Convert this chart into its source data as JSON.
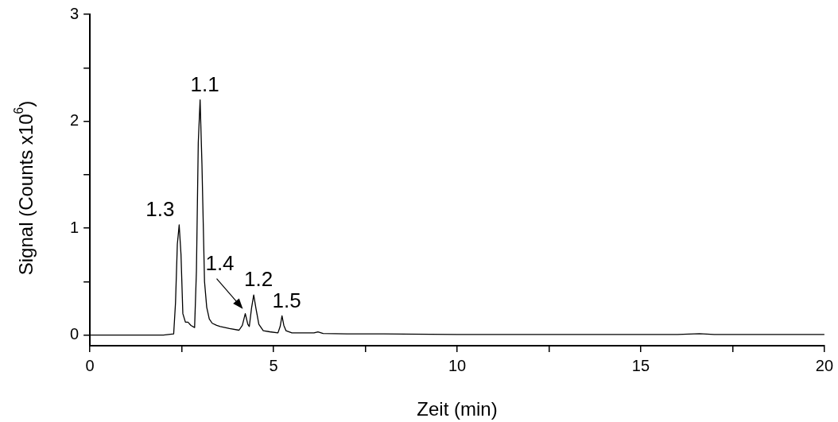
{
  "chart_data": {
    "type": "line",
    "xlabel": "Zeit (min)",
    "ylabel": "Signal (Counts x10$^{6}$)",
    "series": [
      {
        "color": "#000000",
        "x": [
          0,
          1,
          2,
          2.28,
          2.33,
          2.38,
          2.43,
          2.48,
          2.53,
          2.6,
          2.67,
          2.75,
          2.85,
          2.9,
          2.95,
          3.0,
          3.05,
          3.12,
          3.18,
          3.25,
          3.33,
          3.45,
          3.55,
          3.8,
          4.06,
          4.15,
          4.23,
          4.3,
          4.34,
          4.4,
          4.46,
          4.52,
          4.6,
          4.72,
          4.9,
          5.12,
          5.18,
          5.23,
          5.28,
          5.34,
          5.5,
          5.8,
          6.1,
          6.21,
          6.35,
          7,
          8,
          10,
          12,
          14,
          16,
          16.6,
          17,
          18,
          20
        ],
        "values": [
          0,
          0,
          0,
          0.01,
          0.3,
          0.85,
          1.03,
          0.75,
          0.2,
          0.12,
          0.12,
          0.09,
          0.07,
          0.6,
          1.8,
          2.2,
          1.6,
          0.5,
          0.26,
          0.15,
          0.11,
          0.09,
          0.08,
          0.06,
          0.045,
          0.09,
          0.2,
          0.1,
          0.08,
          0.25,
          0.375,
          0.25,
          0.1,
          0.04,
          0.03,
          0.02,
          0.08,
          0.18,
          0.09,
          0.04,
          0.02,
          0.02,
          0.02,
          0.03,
          0.015,
          0.01,
          0.01,
          0.005,
          0.005,
          0.005,
          0.005,
          0.012,
          0.005,
          0.005,
          0.005
        ]
      }
    ],
    "xlim": [
      0,
      20
    ],
    "xticks": [
      0,
      {
        "value": 2.5,
        "label": null
      },
      5,
      {
        "value": 7.5,
        "label": null
      },
      10,
      {
        "value": 12.5,
        "label": null
      },
      15,
      {
        "value": 17.5,
        "label": null
      },
      20
    ],
    "ylim": [
      -0.1,
      3
    ],
    "yticks": [
      0,
      {
        "value": 0.5,
        "label": null
      },
      1,
      {
        "value": 1.5,
        "label": null
      },
      2,
      {
        "value": 2.5,
        "label": null
      },
      3
    ],
    "grid": false,
    "legend": false,
    "marker": "none",
    "line_style": "solid",
    "annotations": [
      {
        "text": "1.1",
        "x": 3.0,
        "y": 2.2
      },
      {
        "text": "1.3",
        "x": 2.43,
        "y": 1.03
      },
      {
        "text": "1.4",
        "x": 4.23,
        "y": 0.2
      },
      {
        "text": "1.2",
        "x": 4.46,
        "y": 0.375
      },
      {
        "text": "1.5",
        "x": 5.23,
        "y": 0.18
      }
    ]
  }
}
